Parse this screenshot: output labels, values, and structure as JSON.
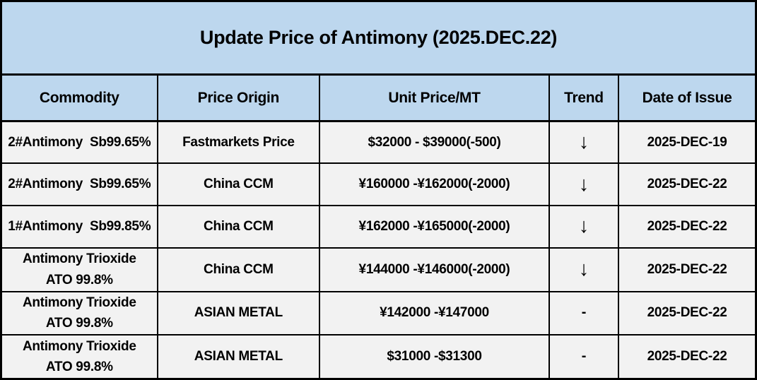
{
  "title": "Update Price of Antimony (2025.DEC.22)",
  "colors": {
    "title_header_bg": "#BDD7EE",
    "row_bg": "#F2F2F2",
    "border": "#000000",
    "text": "#000000"
  },
  "table": {
    "columns": [
      {
        "label": "Commodity"
      },
      {
        "label": "Price Origin"
      },
      {
        "label": "Unit Price/MT"
      },
      {
        "label": "Trend"
      },
      {
        "label": "Date of Issue"
      }
    ],
    "trend_legend": {
      "down": "↓",
      "flat": "-"
    },
    "rows": [
      {
        "commodity": "2#Antimony  Sb99.65%",
        "origin": "Fastmarkets Price",
        "price": "$32000 - $39000(-500)",
        "trend": "↓",
        "date": "2025-DEC-19"
      },
      {
        "commodity": "2#Antimony  Sb99.65%",
        "origin": "China CCM",
        "price": "¥160000 -¥162000(-2000)",
        "trend": "↓",
        "date": "2025-DEC-22"
      },
      {
        "commodity": "1#Antimony  Sb99.85%",
        "origin": "China CCM",
        "price": "¥162000 -¥165000(-2000)",
        "trend": "↓",
        "date": "2025-DEC-22"
      },
      {
        "commodity": "Antimony Trioxide\nATO 99.8%",
        "origin": "China CCM",
        "price": "¥144000 -¥146000(-2000)",
        "trend": "↓",
        "date": "2025-DEC-22"
      },
      {
        "commodity": "Antimony Trioxide\nATO 99.8%",
        "origin": "ASIAN METAL",
        "price": "¥142000 -¥147000",
        "trend": "-",
        "date": "2025-DEC-22"
      },
      {
        "commodity": "Antimony Trioxide\nATO 99.8%",
        "origin": "ASIAN METAL",
        "price": "$31000 -$31300",
        "trend": "-",
        "date": "2025-DEC-22"
      }
    ]
  }
}
